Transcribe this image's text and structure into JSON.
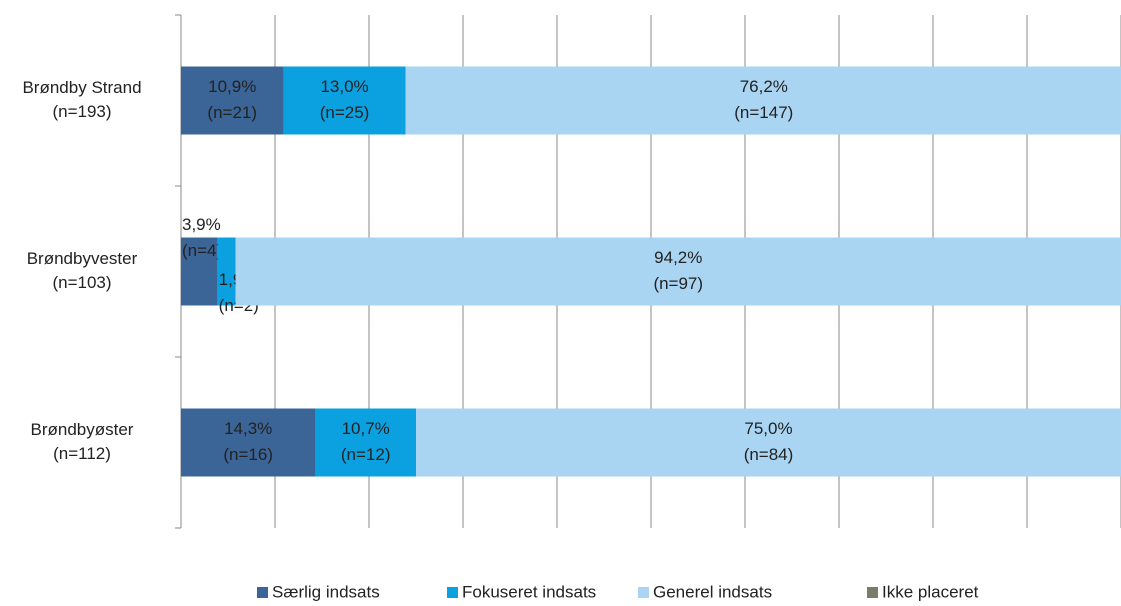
{
  "chart_data": {
    "type": "stacked-bar-horizontal",
    "categories": [
      [
        "Brøndby Strand",
        "(n=193)"
      ],
      [
        "Brøndbyvester",
        "(n=103)"
      ],
      [
        "Brøndbyøster",
        "(n=112)"
      ]
    ],
    "series": [
      {
        "name": "Særlig indsats",
        "color": "#3b6497",
        "values": [
          10.9,
          3.9,
          14.3
        ],
        "value_labels": [
          [
            "10,9%",
            "(n=21)"
          ],
          [
            "3,9%",
            "(n=4)"
          ],
          [
            "14,3%",
            "(n=16)"
          ]
        ]
      },
      {
        "name": "Fokuseret indsats",
        "color": "#0ba0e0",
        "values": [
          13.0,
          1.9,
          10.7
        ],
        "value_labels": [
          [
            "13,0%",
            "(n=25)"
          ],
          [
            "1,9%",
            "(n=2)"
          ],
          [
            "10,7%",
            "(n=12)"
          ]
        ]
      },
      {
        "name": "Generel indsats",
        "color": "#a9d5f3",
        "values": [
          76.2,
          94.2,
          75.0
        ],
        "value_labels": [
          [
            "76,2%",
            "(n=147)"
          ],
          [
            "94,2%",
            "(n=97)"
          ],
          [
            "75,0%",
            "(n=84)"
          ]
        ]
      },
      {
        "name": "Ikke placeret",
        "color": "#7b7c6b",
        "values": [
          0,
          0,
          0
        ]
      }
    ],
    "xlim": [
      0,
      100
    ],
    "xticks": [
      0,
      10,
      20,
      30,
      40,
      50,
      60,
      70,
      80,
      90,
      100
    ],
    "grid": true,
    "legend": "bottom"
  }
}
